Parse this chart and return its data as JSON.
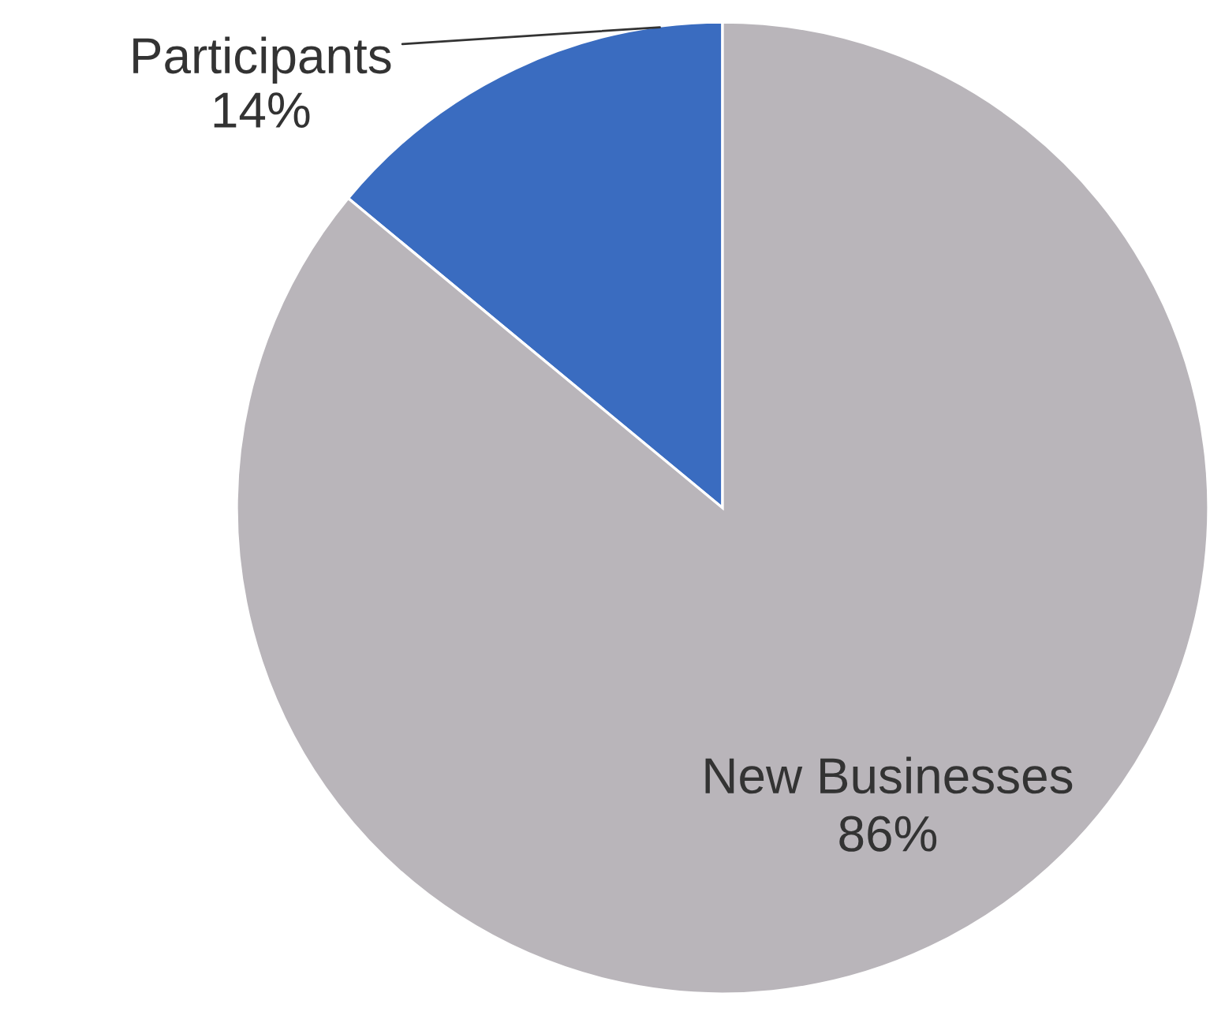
{
  "chart_data": {
    "type": "pie",
    "categories": [
      "Participants",
      "New Businesses"
    ],
    "values": [
      14,
      86
    ],
    "colors": [
      "#3a6cc0",
      "#b9b5ba"
    ],
    "value_labels": [
      "14%",
      "86%"
    ]
  }
}
